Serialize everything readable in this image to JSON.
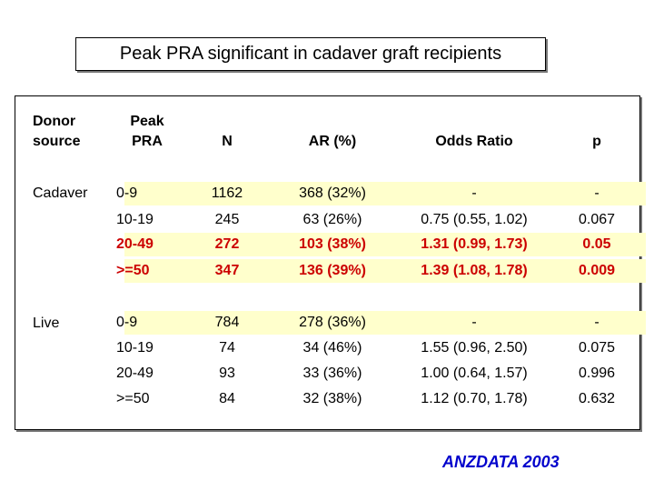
{
  "title": "Peak PRA significant in cadaver graft recipients",
  "headers": {
    "donor": [
      "Donor",
      "source"
    ],
    "peak": [
      "Peak",
      "PRA"
    ],
    "n": "N",
    "ar": "AR (%)",
    "odds": "Odds Ratio",
    "p": "p"
  },
  "groups": [
    {
      "source": "Cadaver",
      "rows": [
        {
          "peak": "0-9",
          "n": "1162",
          "ar": "368 (32%)",
          "odds": "-",
          "p": "-",
          "highlight": true,
          "red": false
        },
        {
          "peak": "10-19",
          "n": "245",
          "ar": "63 (26%)",
          "odds": "0.75 (0.55, 1.02)",
          "p": "0.067",
          "highlight": false,
          "red": false
        },
        {
          "peak": "20-49",
          "n": "272",
          "ar": "103 (38%)",
          "odds": "1.31 (0.99, 1.73)",
          "p": "0.05",
          "highlight": true,
          "red": true
        },
        {
          "peak": ">=50",
          "n": "347",
          "ar": "136 (39%)",
          "odds": "1.39 (1.08, 1.78)",
          "p": "0.009",
          "highlight": true,
          "red": true
        }
      ]
    },
    {
      "source": "Live",
      "rows": [
        {
          "peak": "0-9",
          "n": "784",
          "ar": "278 (36%)",
          "odds": "-",
          "p": "-",
          "highlight": true,
          "red": false
        },
        {
          "peak": "10-19",
          "n": "74",
          "ar": "34 (46%)",
          "odds": "1.55 (0.96, 2.50)",
          "p": "0.075",
          "highlight": false,
          "red": false
        },
        {
          "peak": "20-49",
          "n": "93",
          "ar": "33 (36%)",
          "odds": "1.00 (0.64, 1.57)",
          "p": "0.996",
          "highlight": false,
          "red": false
        },
        {
          "peak": ">=50",
          "n": "84",
          "ar": "32 (38%)",
          "odds": "1.12 (0.70, 1.78)",
          "p": "0.632",
          "highlight": false,
          "red": false
        }
      ]
    }
  ],
  "footer": "ANZDATA 2003",
  "colors": {
    "highlight": "#ffffcc",
    "significant": "#cc0000",
    "footer": "#0000cc"
  }
}
